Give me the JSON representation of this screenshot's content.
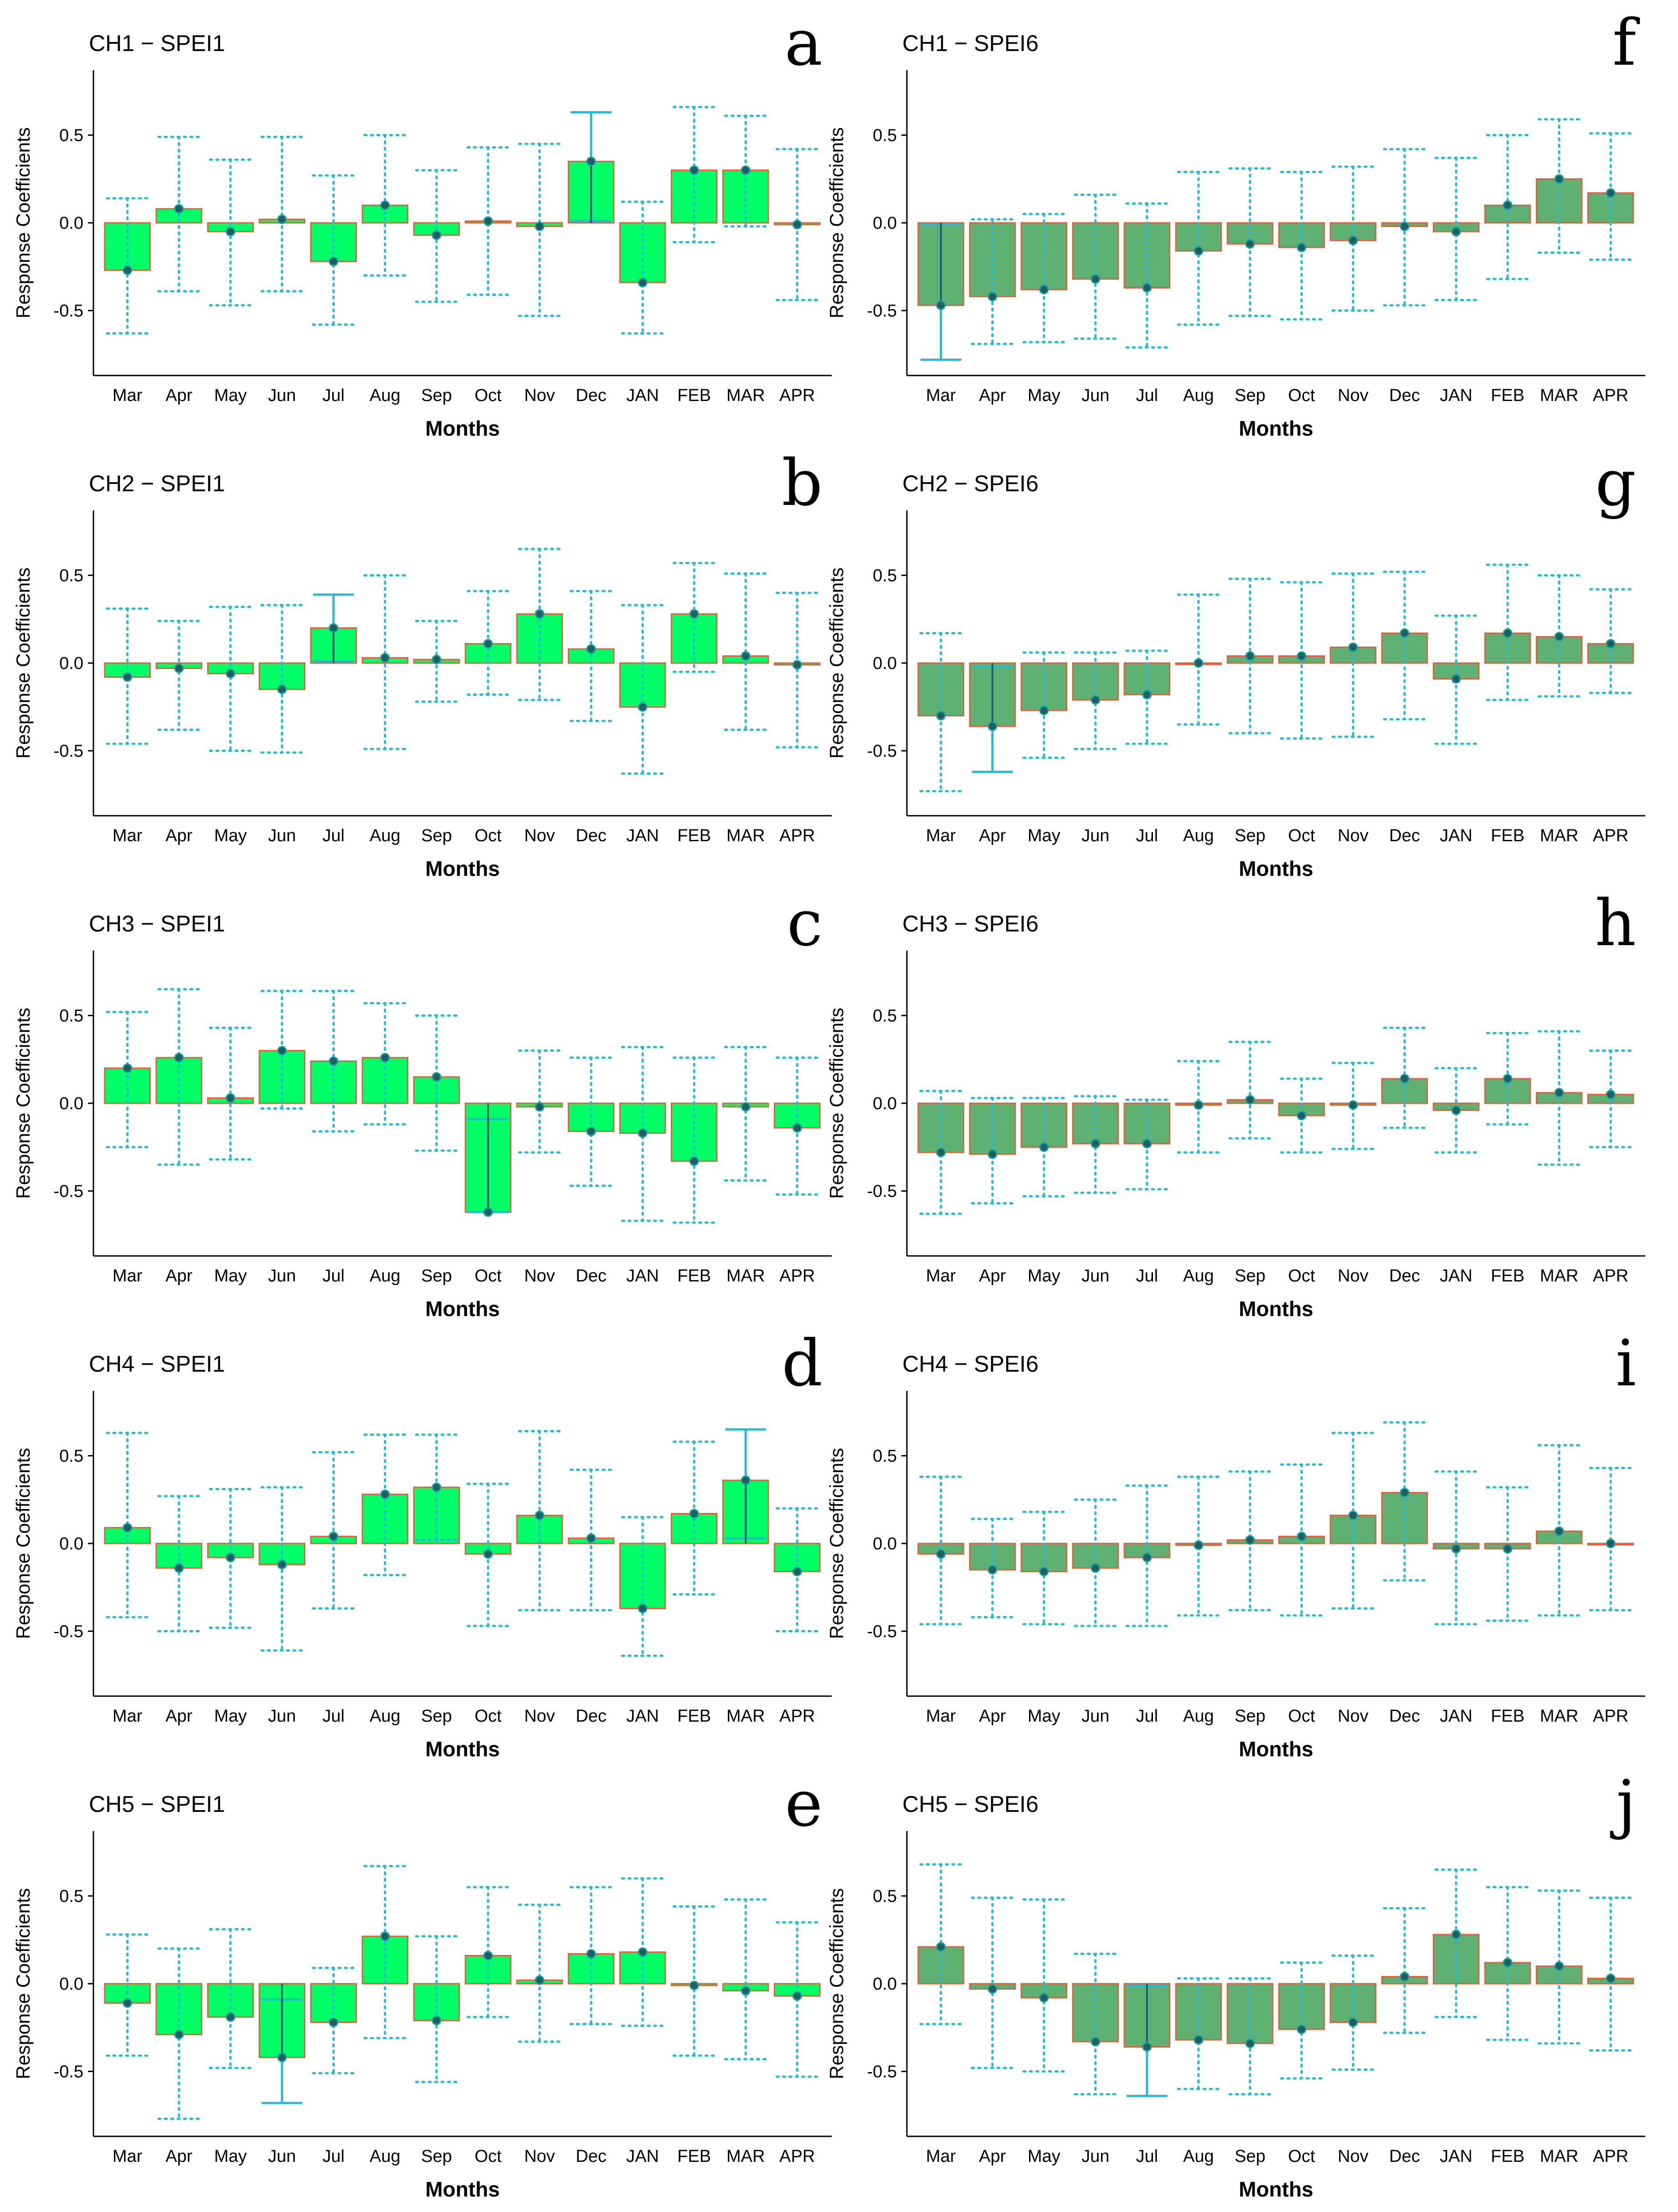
{
  "chart_data": {
    "type": "bar",
    "layout": "grid 5 rows x 2 columns",
    "categories": [
      "Mar",
      "Apr",
      "May",
      "Jun",
      "Jul",
      "Aug",
      "Sep",
      "Oct",
      "Nov",
      "Dec",
      "JAN",
      "FEB",
      "MAR",
      "APR"
    ],
    "ylabel": "Response Coefficients",
    "xlabel": "Months",
    "yticks": [
      "0.5",
      "0.0",
      "-0.5"
    ],
    "ylim": [
      -0.87,
      0.87
    ],
    "colors": {
      "spei1_fill": "#00ff66",
      "spei6_fill": "#5fb073",
      "bar_border": "#e0603a",
      "ci_dotted": "#23bcd3",
      "point": "#1f5f5f"
    },
    "panels": [
      {
        "letter": "a",
        "title": "CH1 − SPEI1",
        "scale": "SPEI1",
        "values": [
          -0.27,
          0.08,
          -0.05,
          0.02,
          -0.22,
          0.1,
          -0.07,
          0.01,
          -0.02,
          0.35,
          -0.34,
          0.3,
          0.3,
          -0.01
        ],
        "upper": [
          0.14,
          0.49,
          0.36,
          0.49,
          0.27,
          0.5,
          0.3,
          0.43,
          0.45,
          0.63,
          0.12,
          0.66,
          0.61,
          0.42
        ],
        "lower": [
          -0.63,
          -0.39,
          -0.47,
          -0.39,
          -0.58,
          -0.3,
          -0.45,
          -0.41,
          -0.53,
          0.01,
          -0.63,
          -0.11,
          -0.02,
          -0.44
        ],
        "solid_ci": [
          9
        ]
      },
      {
        "letter": "b",
        "title": "CH2 − SPEI1",
        "scale": "SPEI1",
        "values": [
          -0.08,
          -0.03,
          -0.06,
          -0.15,
          0.2,
          0.03,
          0.02,
          0.11,
          0.28,
          0.08,
          -0.25,
          0.28,
          0.04,
          -0.01
        ],
        "upper": [
          0.31,
          0.24,
          0.32,
          0.33,
          0.39,
          0.5,
          0.24,
          0.41,
          0.65,
          0.41,
          0.33,
          0.57,
          0.51,
          0.4
        ],
        "lower": [
          -0.46,
          -0.38,
          -0.5,
          -0.51,
          0.01,
          -0.49,
          -0.22,
          -0.18,
          -0.21,
          -0.33,
          -0.63,
          -0.05,
          -0.38,
          -0.48
        ],
        "solid_ci": [
          4
        ]
      },
      {
        "letter": "c",
        "title": "CH3 − SPEI1",
        "scale": "SPEI1",
        "values": [
          0.2,
          0.26,
          0.03,
          0.3,
          0.24,
          0.26,
          0.15,
          -0.62,
          -0.02,
          -0.16,
          -0.17,
          -0.33,
          -0.02,
          -0.14
        ],
        "upper": [
          0.52,
          0.65,
          0.43,
          0.64,
          0.64,
          0.57,
          0.5,
          -0.09,
          0.3,
          0.26,
          0.32,
          0.26,
          0.32,
          0.26
        ],
        "lower": [
          -0.25,
          -0.35,
          -0.32,
          -0.03,
          -0.16,
          -0.12,
          -0.27,
          -0.62,
          -0.28,
          -0.47,
          -0.67,
          -0.68,
          -0.44,
          -0.52
        ],
        "solid_ci": [
          7
        ]
      },
      {
        "letter": "d",
        "title": "CH4 − SPEI1",
        "scale": "SPEI1",
        "values": [
          0.09,
          -0.14,
          -0.08,
          -0.12,
          0.04,
          0.28,
          0.32,
          -0.06,
          0.16,
          0.03,
          -0.37,
          0.17,
          0.36,
          -0.16
        ],
        "upper": [
          0.63,
          0.27,
          0.31,
          0.32,
          0.52,
          0.62,
          0.62,
          0.34,
          0.64,
          0.42,
          0.15,
          0.58,
          0.65,
          0.2
        ],
        "lower": [
          -0.42,
          -0.5,
          -0.48,
          -0.61,
          -0.37,
          -0.18,
          0.02,
          -0.47,
          -0.38,
          -0.38,
          -0.64,
          -0.29,
          0.03,
          -0.5
        ],
        "solid_ci": [
          12
        ]
      },
      {
        "letter": "e",
        "title": "CH5 − SPEI1",
        "scale": "SPEI1",
        "values": [
          -0.11,
          -0.29,
          -0.19,
          -0.42,
          -0.22,
          0.27,
          -0.21,
          0.16,
          0.02,
          0.17,
          0.18,
          -0.01,
          -0.04,
          -0.07
        ],
        "upper": [
          0.28,
          0.2,
          0.31,
          -0.09,
          0.09,
          0.67,
          0.27,
          0.55,
          0.45,
          0.55,
          0.6,
          0.44,
          0.48,
          0.35
        ],
        "lower": [
          -0.41,
          -0.77,
          -0.48,
          -0.68,
          -0.51,
          -0.31,
          -0.56,
          -0.19,
          -0.33,
          -0.23,
          -0.24,
          -0.41,
          -0.43,
          -0.53
        ],
        "solid_ci": [
          3
        ]
      },
      {
        "letter": "f",
        "title": "CH1 − SPEI6",
        "scale": "SPEI6",
        "values": [
          -0.47,
          -0.42,
          -0.38,
          -0.32,
          -0.37,
          -0.16,
          -0.12,
          -0.14,
          -0.1,
          -0.02,
          -0.05,
          0.1,
          0.25,
          0.17
        ],
        "upper": [
          -0.01,
          0.02,
          0.05,
          0.16,
          0.11,
          0.29,
          0.31,
          0.29,
          0.32,
          0.42,
          0.37,
          0.5,
          0.59,
          0.51
        ],
        "lower": [
          -0.78,
          -0.69,
          -0.68,
          -0.66,
          -0.71,
          -0.58,
          -0.53,
          -0.55,
          -0.5,
          -0.47,
          -0.44,
          -0.32,
          -0.17,
          -0.21
        ],
        "solid_ci": [
          0
        ]
      },
      {
        "letter": "g",
        "title": "CH2 − SPEI6",
        "scale": "SPEI6",
        "values": [
          -0.3,
          -0.36,
          -0.27,
          -0.21,
          -0.18,
          0.0,
          0.04,
          0.04,
          0.09,
          0.17,
          -0.09,
          0.17,
          0.15,
          0.11
        ],
        "upper": [
          0.17,
          -0.02,
          0.06,
          0.06,
          0.07,
          0.39,
          0.48,
          0.46,
          0.51,
          0.52,
          0.27,
          0.56,
          0.5,
          0.42
        ],
        "lower": [
          -0.73,
          -0.62,
          -0.54,
          -0.49,
          -0.46,
          -0.35,
          -0.4,
          -0.43,
          -0.42,
          -0.32,
          -0.46,
          -0.21,
          -0.19,
          -0.17
        ],
        "solid_ci": [
          1
        ]
      },
      {
        "letter": "h",
        "title": "CH3 − SPEI6",
        "scale": "SPEI6",
        "values": [
          -0.28,
          -0.29,
          -0.25,
          -0.23,
          -0.23,
          -0.01,
          0.02,
          -0.07,
          -0.01,
          0.14,
          -0.04,
          0.14,
          0.06,
          0.05
        ],
        "upper": [
          0.07,
          0.03,
          0.03,
          0.04,
          0.02,
          0.24,
          0.35,
          0.14,
          0.23,
          0.43,
          0.2,
          0.4,
          0.41,
          0.3
        ],
        "lower": [
          -0.63,
          -0.57,
          -0.53,
          -0.51,
          -0.49,
          -0.28,
          -0.2,
          -0.28,
          -0.26,
          -0.14,
          -0.28,
          -0.12,
          -0.35,
          -0.25
        ],
        "solid_ci": []
      },
      {
        "letter": "i",
        "title": "CH4 − SPEI6",
        "scale": "SPEI6",
        "values": [
          -0.06,
          -0.15,
          -0.16,
          -0.14,
          -0.08,
          -0.01,
          0.02,
          0.04,
          0.16,
          0.29,
          -0.03,
          -0.03,
          0.07,
          0.0
        ],
        "upper": [
          0.38,
          0.14,
          0.18,
          0.25,
          0.33,
          0.38,
          0.41,
          0.45,
          0.63,
          0.69,
          0.41,
          0.32,
          0.56,
          0.43
        ],
        "lower": [
          -0.46,
          -0.42,
          -0.46,
          -0.47,
          -0.47,
          -0.41,
          -0.38,
          -0.41,
          -0.37,
          -0.21,
          -0.46,
          -0.44,
          -0.41,
          -0.38
        ],
        "solid_ci": []
      },
      {
        "letter": "j",
        "title": "CH5 − SPEI6",
        "scale": "SPEI6",
        "values": [
          0.21,
          -0.03,
          -0.08,
          -0.33,
          -0.36,
          -0.32,
          -0.34,
          -0.26,
          -0.22,
          0.04,
          0.28,
          0.12,
          0.1,
          0.03
        ],
        "upper": [
          0.68,
          0.49,
          0.48,
          0.17,
          -0.01,
          0.03,
          0.03,
          0.12,
          0.16,
          0.43,
          0.65,
          0.55,
          0.53,
          0.49
        ],
        "lower": [
          -0.23,
          -0.48,
          -0.5,
          -0.63,
          -0.64,
          -0.6,
          -0.63,
          -0.54,
          -0.49,
          -0.28,
          -0.19,
          -0.32,
          -0.34,
          -0.38
        ],
        "solid_ci": [
          4
        ]
      }
    ]
  }
}
